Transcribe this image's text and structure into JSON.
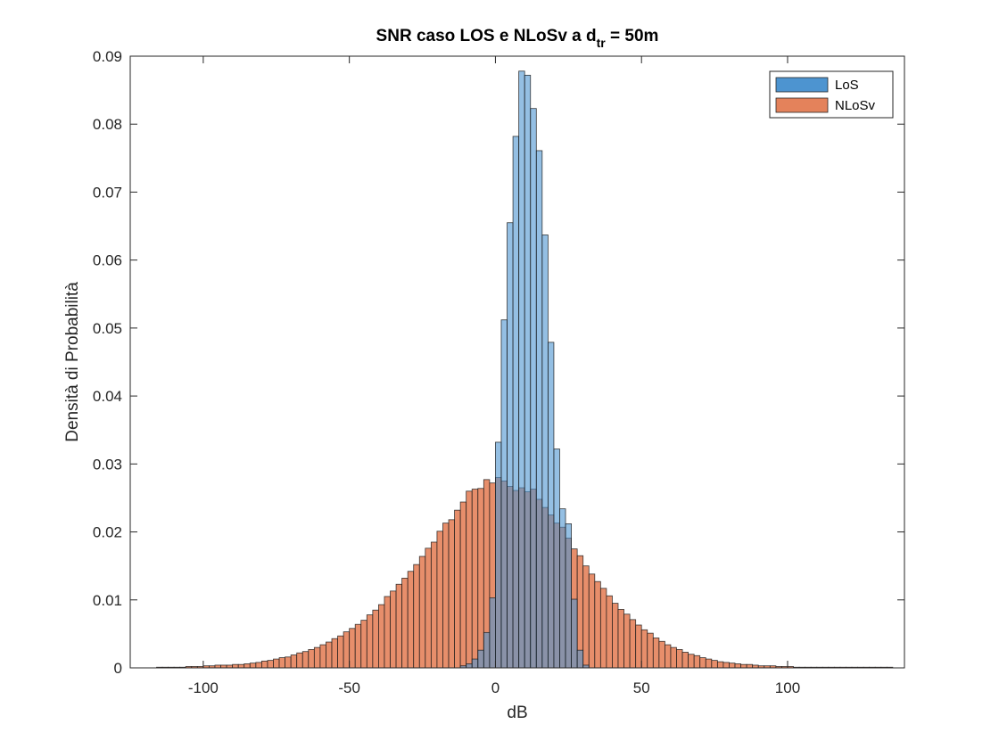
{
  "chart_data": {
    "type": "histogram",
    "title": "SNR caso LOS e NLoSv a d",
    "title_sub": "tr",
    "title_suffix": " = 50m",
    "xlabel": "dB",
    "ylabel": "Densità di Probabilità",
    "xlim": [
      -125,
      140
    ],
    "ylim": [
      0,
      0.09
    ],
    "xticks": [
      -100,
      -50,
      0,
      50,
      100
    ],
    "xtick_labels": [
      "-100",
      "-50",
      "0",
      "50",
      "100"
    ],
    "yticks": [
      0,
      0.01,
      0.02,
      0.03,
      0.04,
      0.05,
      0.06,
      0.07,
      0.08,
      0.09
    ],
    "ytick_labels": [
      "0",
      "0.01",
      "0.02",
      "0.03",
      "0.04",
      "0.05",
      "0.06",
      "0.07",
      "0.08",
      "0.09"
    ],
    "grid": false,
    "legend_position": "top-right",
    "colors": {
      "LoS": "#4d94d0",
      "NLoSv": "#e4825b"
    },
    "series": [
      {
        "name": "LoS",
        "bin_width": 2,
        "bins_start": [
          -12,
          -10,
          -8,
          -6,
          -4,
          -2,
          0,
          2,
          4,
          6,
          8,
          10,
          12,
          14,
          16,
          18,
          20,
          22,
          24,
          26,
          28,
          30
        ],
        "values": [
          0.0003,
          0.0006,
          0.0013,
          0.0026,
          0.0052,
          0.0103,
          0.0332,
          0.0512,
          0.0655,
          0.0782,
          0.0878,
          0.0872,
          0.0823,
          0.0761,
          0.0637,
          0.0479,
          0.0322,
          0.0234,
          0.0212,
          0.0101,
          0.0026,
          0.0004
        ]
      },
      {
        "name": "NLoSv",
        "bin_width": 2,
        "bins_start": [
          -116,
          -114,
          -112,
          -110,
          -108,
          -106,
          -104,
          -102,
          -100,
          -98,
          -96,
          -94,
          -92,
          -90,
          -88,
          -86,
          -84,
          -82,
          -80,
          -78,
          -76,
          -74,
          -72,
          -70,
          -68,
          -66,
          -64,
          -62,
          -60,
          -58,
          -56,
          -54,
          -52,
          -50,
          -48,
          -46,
          -44,
          -42,
          -40,
          -38,
          -36,
          -34,
          -32,
          -30,
          -28,
          -26,
          -24,
          -22,
          -20,
          -18,
          -16,
          -14,
          -12,
          -10,
          -8,
          -6,
          -4,
          -2,
          0,
          2,
          4,
          6,
          8,
          10,
          12,
          14,
          16,
          18,
          20,
          22,
          24,
          26,
          28,
          30,
          32,
          34,
          36,
          38,
          40,
          42,
          44,
          46,
          48,
          50,
          52,
          54,
          56,
          58,
          60,
          62,
          64,
          66,
          68,
          70,
          72,
          74,
          76,
          78,
          80,
          82,
          84,
          86,
          88,
          90,
          92,
          94,
          96,
          98,
          100,
          102,
          104,
          106,
          108,
          110,
          112,
          114,
          116,
          118,
          120,
          122,
          124,
          126,
          128,
          130,
          132,
          134
        ],
        "values": [
          0.0001,
          0.0001,
          0.0001,
          0.0001,
          0.0001,
          0.0002,
          0.0002,
          0.0002,
          0.0003,
          0.0003,
          0.0004,
          0.0004,
          0.0004,
          0.0005,
          0.0005,
          0.0006,
          0.0007,
          0.0008,
          0.001,
          0.0011,
          0.0013,
          0.0015,
          0.0016,
          0.0019,
          0.0022,
          0.0024,
          0.0027,
          0.003,
          0.0034,
          0.0038,
          0.0043,
          0.0047,
          0.0053,
          0.0058,
          0.0064,
          0.007,
          0.0078,
          0.0085,
          0.0093,
          0.0105,
          0.0113,
          0.0123,
          0.0132,
          0.0142,
          0.0152,
          0.0164,
          0.0176,
          0.0185,
          0.0201,
          0.0213,
          0.0218,
          0.0232,
          0.0244,
          0.026,
          0.0263,
          0.0264,
          0.0277,
          0.0272,
          0.028,
          0.0275,
          0.0267,
          0.0261,
          0.0265,
          0.0259,
          0.0263,
          0.0248,
          0.0236,
          0.0225,
          0.0213,
          0.0207,
          0.0191,
          0.0175,
          0.0165,
          0.015,
          0.0138,
          0.0127,
          0.0117,
          0.0106,
          0.0095,
          0.0086,
          0.0079,
          0.0071,
          0.0063,
          0.0056,
          0.0051,
          0.0044,
          0.0039,
          0.0034,
          0.003,
          0.0027,
          0.0023,
          0.002,
          0.0018,
          0.0015,
          0.0013,
          0.0011,
          0.0009,
          0.0008,
          0.0007,
          0.0006,
          0.0005,
          0.0005,
          0.0004,
          0.0003,
          0.0003,
          0.0003,
          0.0002,
          0.0002,
          0.0002,
          0.0001,
          0.0001,
          0.0001,
          0.0001,
          0.0001,
          0.0001,
          0.0001,
          0.0001,
          0.0001,
          0.0001,
          0.0001,
          0.0001,
          0.0001,
          0.0001,
          0.0001,
          0.0001,
          0.0001
        ]
      }
    ]
  }
}
